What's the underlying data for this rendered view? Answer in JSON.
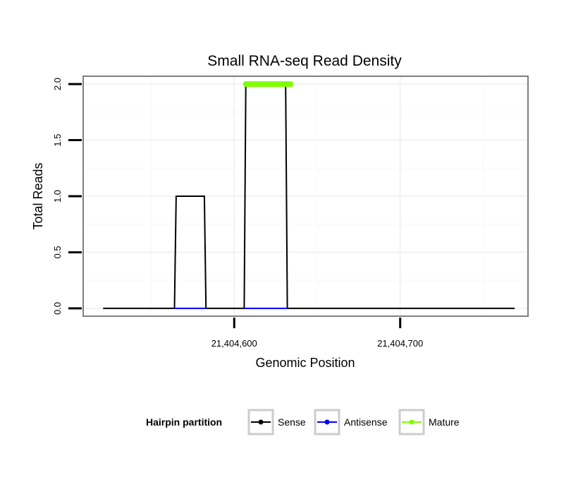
{
  "chart_data": {
    "type": "line",
    "title": "Small RNA-seq Read Density",
    "xlabel": "Genomic Position",
    "ylabel": "Total Reads",
    "xlim": [
      21404509,
      21404777
    ],
    "ylim": [
      -0.07,
      2.07
    ],
    "x_ticks": [
      {
        "value": 21404600,
        "label": "21,404,600"
      },
      {
        "value": 21404700,
        "label": "21,404,700"
      }
    ],
    "y_ticks": [
      {
        "value": 0,
        "label": "0.0"
      },
      {
        "value": 0.5,
        "label": "0.5"
      },
      {
        "value": 1,
        "label": "1.0"
      },
      {
        "value": 1.5,
        "label": "1.5"
      },
      {
        "value": 2,
        "label": "2.0"
      }
    ],
    "grid": true,
    "legend": {
      "title": "Hairpin partition",
      "position": "bottom",
      "entries": [
        {
          "name": "Sense",
          "color": "#000000"
        },
        {
          "name": "Antisense",
          "color": "#0000ff"
        },
        {
          "name": "Mature",
          "color": "#7fff00"
        }
      ]
    },
    "series": [
      {
        "name": "Sense",
        "color": "#000000",
        "x": [
          21404521,
          21404564,
          21404565,
          21404582,
          21404583,
          21404606,
          21404607,
          21404631,
          21404632,
          21404769
        ],
        "y": [
          0,
          0,
          1,
          1,
          0,
          0,
          2,
          2,
          0,
          0
        ]
      },
      {
        "name": "Antisense",
        "color": "#0000ff",
        "x": [
          21404564,
          21404583,
          21404606,
          21404632
        ],
        "y": [
          0,
          0,
          0,
          0
        ],
        "segments": [
          [
            0,
            1
          ],
          [
            2,
            3
          ]
        ]
      },
      {
        "name": "Mature",
        "color": "#7fff00",
        "x": [
          21404607,
          21404634
        ],
        "y": [
          2,
          2
        ]
      }
    ]
  }
}
